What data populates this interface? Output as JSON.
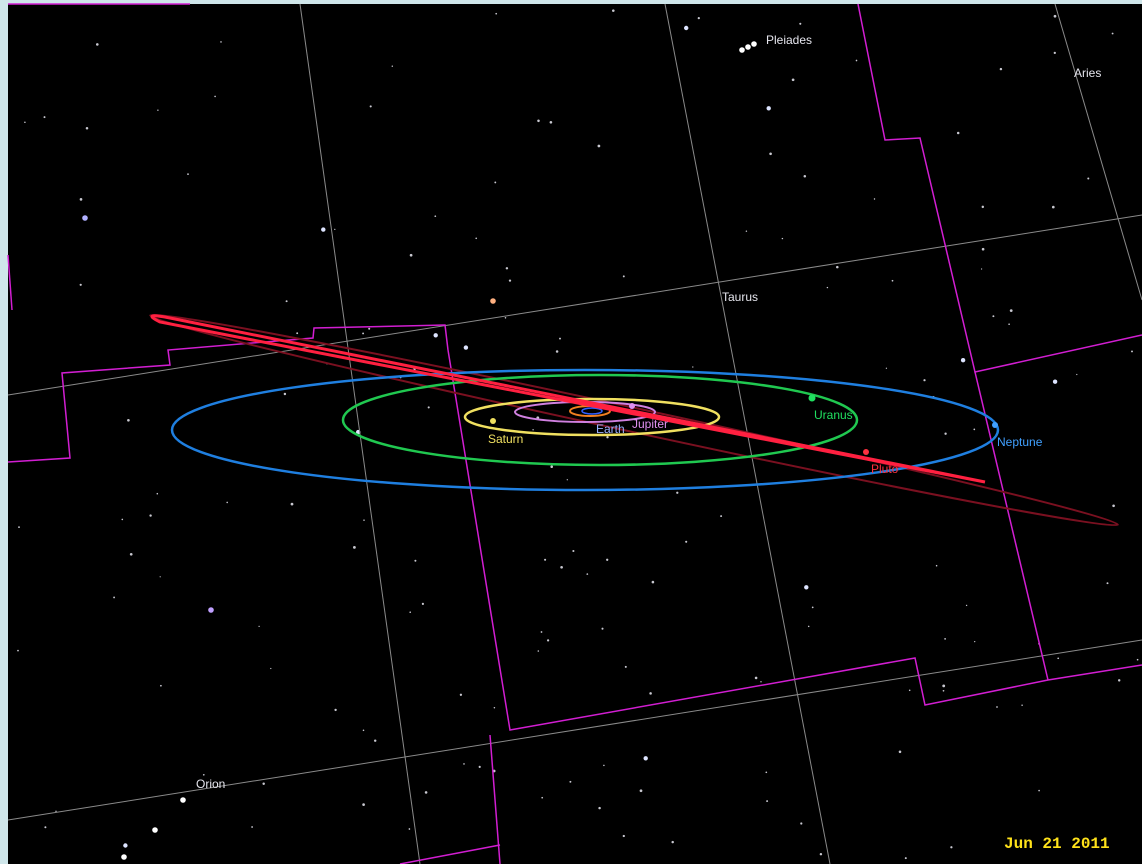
{
  "labels": {
    "pleiades": "Pleiades",
    "aries": "Aries",
    "taurus": "Taurus",
    "orion": "Orion",
    "uranus": "Uranus",
    "saturn": "Saturn",
    "jupiter": "Jupiter",
    "earth": "Earth",
    "neptune": "Neptune",
    "pluto": "Pluto"
  },
  "status": {
    "date": "Jun 21 2011"
  }
}
